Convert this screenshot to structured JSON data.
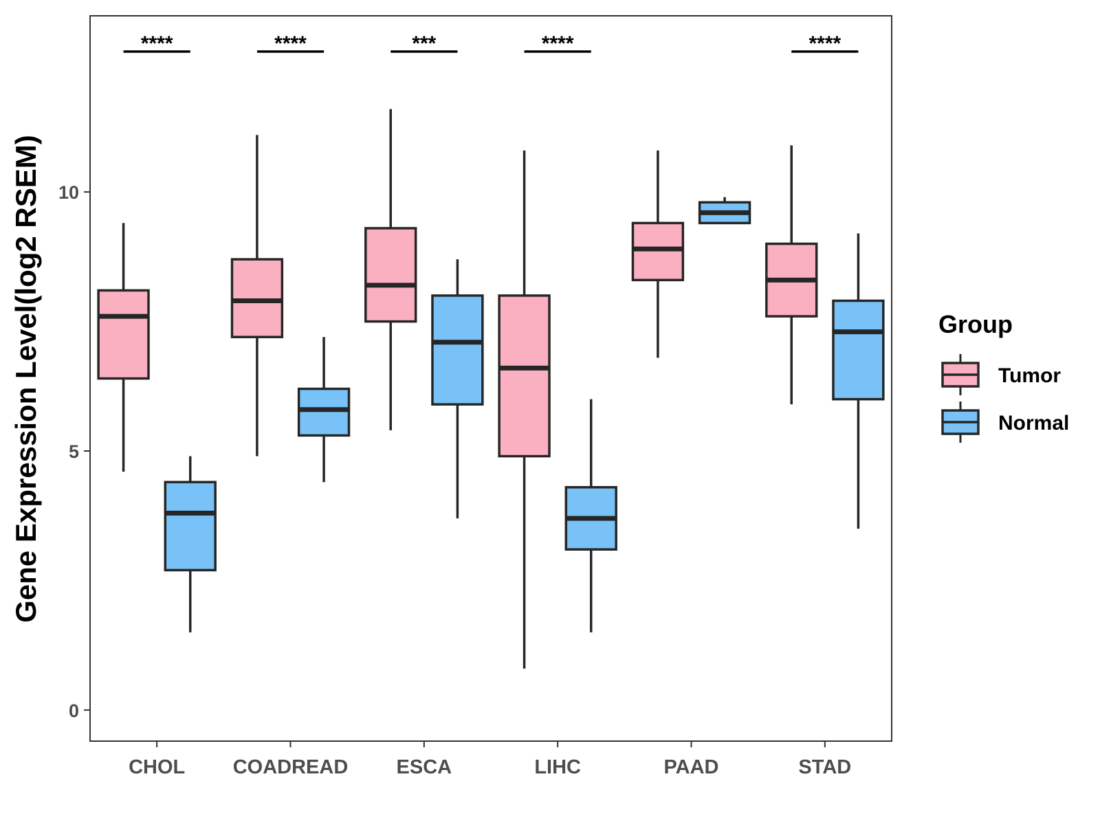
{
  "chart_data": {
    "type": "boxplot",
    "title": "",
    "xlabel": "",
    "ylabel": "Gene Expression Level(log2 RSEM)",
    "ylim": [
      -0.6,
      13.4
    ],
    "yticks": [
      0,
      5,
      10
    ],
    "ytick_labels": [
      "0",
      "5",
      "10"
    ],
    "categories": [
      "CHOL",
      "COADREAD",
      "ESCA",
      "LIHC",
      "PAAD",
      "STAD"
    ],
    "groups": [
      {
        "name": "Tumor",
        "color": "#FBB0C2"
      },
      {
        "name": "Normal",
        "color": "#78C2F7"
      }
    ],
    "legend": {
      "title": "Group",
      "position": "right"
    },
    "series": [
      {
        "name": "Tumor",
        "boxes": [
          {
            "whisker_low": 4.6,
            "q1": 6.4,
            "median": 7.6,
            "q3": 8.1,
            "whisker_high": 9.4
          },
          {
            "whisker_low": 4.9,
            "q1": 7.2,
            "median": 7.9,
            "q3": 8.7,
            "whisker_high": 11.1
          },
          {
            "whisker_low": 5.4,
            "q1": 7.5,
            "median": 8.2,
            "q3": 9.3,
            "whisker_high": 11.6
          },
          {
            "whisker_low": 0.8,
            "q1": 4.9,
            "median": 6.6,
            "q3": 8.0,
            "whisker_high": 10.8
          },
          {
            "whisker_low": 6.8,
            "q1": 8.3,
            "median": 8.9,
            "q3": 9.4,
            "whisker_high": 10.8
          },
          {
            "whisker_low": 5.9,
            "q1": 7.6,
            "median": 8.3,
            "q3": 9.0,
            "whisker_high": 10.9
          }
        ]
      },
      {
        "name": "Normal",
        "boxes": [
          {
            "whisker_low": 1.5,
            "q1": 2.7,
            "median": 3.8,
            "q3": 4.4,
            "whisker_high": 4.9
          },
          {
            "whisker_low": 4.4,
            "q1": 5.3,
            "median": 5.8,
            "q3": 6.2,
            "whisker_high": 7.2
          },
          {
            "whisker_low": 3.7,
            "q1": 5.9,
            "median": 7.1,
            "q3": 8.0,
            "whisker_high": 8.7
          },
          {
            "whisker_low": 1.5,
            "q1": 3.1,
            "median": 3.7,
            "q3": 4.3,
            "whisker_high": 6.0
          },
          {
            "whisker_low": 9.4,
            "q1": 9.4,
            "median": 9.6,
            "q3": 9.8,
            "whisker_high": 9.9
          },
          {
            "whisker_low": 3.5,
            "q1": 6.0,
            "median": 7.3,
            "q3": 7.9,
            "whisker_high": 9.2
          }
        ]
      }
    ],
    "significance": [
      {
        "category": "CHOL",
        "label": "****"
      },
      {
        "category": "COADREAD",
        "label": "****"
      },
      {
        "category": "ESCA",
        "label": "***"
      },
      {
        "category": "LIHC",
        "label": "****"
      },
      {
        "category": "PAAD",
        "label": ""
      },
      {
        "category": "STAD",
        "label": "****"
      }
    ]
  }
}
